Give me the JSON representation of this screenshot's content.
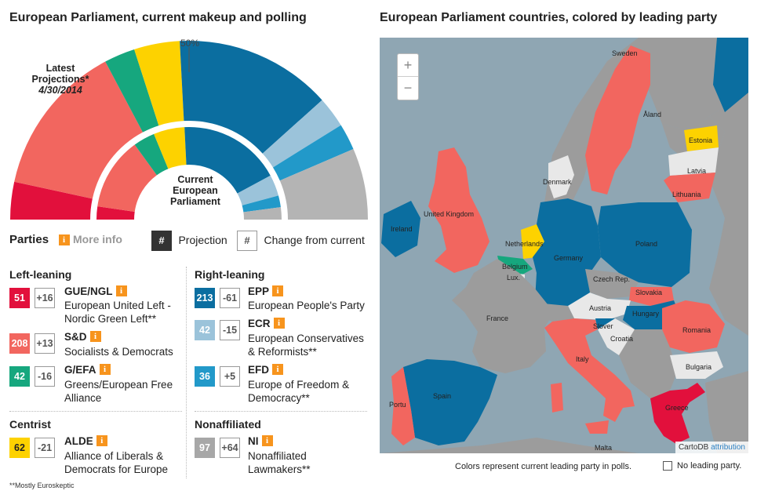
{
  "left_title": "European Parliament, current makeup and polling",
  "right_title": "European Parliament countries, colored by leading party",
  "chart_data": {
    "type": "semicircle",
    "title": "European Parliament, current makeup and polling",
    "fifty_label": "50%",
    "projection_label_line1": "Latest",
    "projection_label_line2": "Projections*",
    "projection_date": "4/30/2014",
    "current_label_line1": "Current",
    "current_label_line2": "European",
    "current_label_line3": "Parliament",
    "series_order": [
      "GUE/NGL",
      "S&D",
      "G/EFA",
      "ALDE",
      "EPP",
      "ECR",
      "EFD",
      "NI"
    ],
    "projection": [
      {
        "party": "GUE/NGL",
        "seats": 51,
        "color": "#e2103c"
      },
      {
        "party": "S&D",
        "seats": 208,
        "color": "#f2665f"
      },
      {
        "party": "G/EFA",
        "seats": 42,
        "color": "#16a77e"
      },
      {
        "party": "ALDE",
        "seats": 62,
        "color": "#fdd200"
      },
      {
        "party": "EPP",
        "seats": 213,
        "color": "#0b6ea0"
      },
      {
        "party": "ECR",
        "seats": 42,
        "color": "#9bc3da"
      },
      {
        "party": "EFD",
        "seats": 36,
        "color": "#2299c9"
      },
      {
        "party": "NI",
        "seats": 97,
        "color": "#b4b4b4"
      }
    ],
    "current": [
      {
        "party": "GUE/NGL",
        "seats": 35,
        "color": "#e2103c"
      },
      {
        "party": "S&D",
        "seats": 195,
        "color": "#f2665f"
      },
      {
        "party": "G/EFA",
        "seats": 58,
        "color": "#16a77e"
      },
      {
        "party": "ALDE",
        "seats": 83,
        "color": "#fdd200"
      },
      {
        "party": "EPP",
        "seats": 274,
        "color": "#0b6ea0"
      },
      {
        "party": "ECR",
        "seats": 57,
        "color": "#9bc3da"
      },
      {
        "party": "EFD",
        "seats": 31,
        "color": "#2299c9"
      },
      {
        "party": "NI",
        "seats": 33,
        "color": "#b4b4b4"
      }
    ]
  },
  "parties_header": {
    "title": "Parties",
    "info": "i",
    "more_info": "More info",
    "projection_symbol": "#",
    "projection_label": "Projection",
    "change_symbol": "#",
    "change_label": "Change from current"
  },
  "groups": {
    "left_leaning": "Left-leaning",
    "right_leaning": "Right-leaning",
    "centrist": "Centrist",
    "nonaffiliated": "Nonaffiliated"
  },
  "parties": {
    "gue": {
      "value": "51",
      "change": "+16",
      "name": "GUE/NGL",
      "desc1": "European United Left -",
      "desc2": "Nordic Green Left**",
      "color": "#e2103c"
    },
    "sd": {
      "value": "208",
      "change": "+13",
      "name": "S&D",
      "desc1": "Socialists & Democrats",
      "desc2": "",
      "color": "#f2665f"
    },
    "gefa": {
      "value": "42",
      "change": "-16",
      "name": "G/EFA",
      "desc1": "Greens/European Free",
      "desc2": "Alliance",
      "color": "#16a77e"
    },
    "epp": {
      "value": "213",
      "change": "-61",
      "name": "EPP",
      "desc1": "European People's Party",
      "desc2": "",
      "color": "#0b6ea0"
    },
    "ecr": {
      "value": "42",
      "change": "-15",
      "name": "ECR",
      "desc1": "European Conservatives",
      "desc2": "& Reformists**",
      "color": "#9bc3da"
    },
    "efd": {
      "value": "36",
      "change": "+5",
      "name": "EFD",
      "desc1": "Europe of Freedom &",
      "desc2": "Democracy**",
      "color": "#2299c9"
    },
    "alde": {
      "value": "62",
      "change": "-21",
      "name": "ALDE",
      "desc1": "Alliance of Liberals &",
      "desc2": "Democrats for Europe",
      "color": "#fdd200"
    },
    "ni": {
      "value": "97",
      "change": "+64",
      "name": "NI",
      "desc1": "Nonaffiliated",
      "desc2": "Lawmakers**",
      "color": "#a7a7a7"
    }
  },
  "footnote": "**Mostly Euroskeptic",
  "map": {
    "zoom_in": "+",
    "zoom_out": "−",
    "cartodb": "CartoDB",
    "attribution": "attribution",
    "colors": {
      "water": "#8fa6b3",
      "land": "#9c9c9c",
      "epp": "#0b6ea0",
      "sd": "#f2665f",
      "alde": "#fdd200",
      "gefa": "#16a77e",
      "gue": "#e2103c",
      "none": "#e8e8e8"
    },
    "labels": {
      "sweden": "Sweden",
      "aland": "Åland",
      "estonia": "Estonia",
      "latvia": "Latvia",
      "lithuania": "Lithuania",
      "denmark": "Denmark",
      "uk": "United Kingdom",
      "ireland": "Ireland",
      "netherlands": "Netherlands",
      "belgium": "Belgium",
      "lux": "Lux.",
      "germany": "Germany",
      "poland": "Poland",
      "czech": "Czech Rep.",
      "slovakia": "Slovakia",
      "austria": "Austria",
      "hungary": "Hungary",
      "france": "France",
      "slovenia": "Slover",
      "croatia": "Croatia",
      "romania": "Romania",
      "bulgaria": "Bulgaria",
      "italy": "Italy",
      "spain": "Spain",
      "portugal": "Portu",
      "greece": "Greece",
      "malta": "Malta"
    }
  },
  "map_note": "Colors represent current leading party in polls.",
  "no_leading": "No leading party."
}
